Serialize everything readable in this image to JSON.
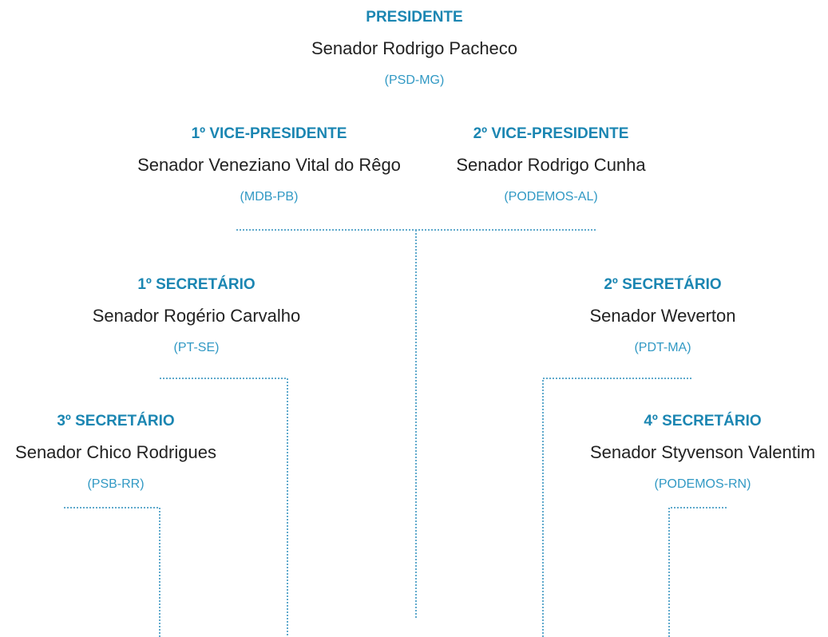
{
  "nodes": [
    {
      "role": "PRESIDENTE",
      "name": "Senador Rodrigo Pacheco",
      "party": "(PSD-MG)"
    },
    {
      "role": "1º VICE-PRESIDENTE",
      "name": "Senador Veneziano Vital do Rêgo",
      "party": "(MDB-PB)"
    },
    {
      "role": "2º VICE-PRESIDENTE",
      "name": "Senador Rodrigo Cunha",
      "party": "(PODEMOS-AL)"
    },
    {
      "role": "1º SECRETÁRIO",
      "name": "Senador Rogério Carvalho",
      "party": "(PT-SE)"
    },
    {
      "role": "2º SECRETÁRIO",
      "name": "Senador Weverton",
      "party": "(PDT-MA)"
    },
    {
      "role": "3º SECRETÁRIO",
      "name": "Senador Chico Rodrigues",
      "party": "(PSB-RR)"
    },
    {
      "role": "4º SECRETÁRIO",
      "name": "Senador Styvenson Valentim",
      "party": "(PODEMOS-RN)"
    }
  ]
}
